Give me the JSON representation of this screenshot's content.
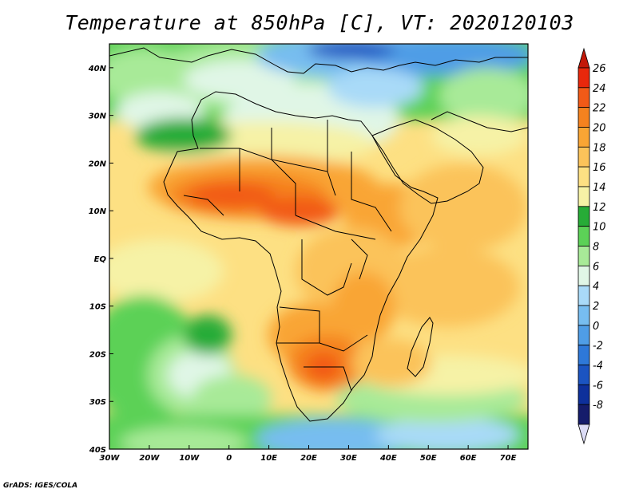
{
  "title": "Temperature at 850hPa [C], VT: 2020120103",
  "credit": "GrADS: IGES/COLA",
  "map": {
    "lon_range": [
      -30,
      75
    ],
    "lat_range": [
      -40,
      45
    ],
    "lon_ticks": [
      {
        "value": -30,
        "label": "30W"
      },
      {
        "value": -20,
        "label": "20W"
      },
      {
        "value": -10,
        "label": "10W"
      },
      {
        "value": 0,
        "label": "0"
      },
      {
        "value": 10,
        "label": "10E"
      },
      {
        "value": 20,
        "label": "20E"
      },
      {
        "value": 30,
        "label": "30E"
      },
      {
        "value": 40,
        "label": "40E"
      },
      {
        "value": 50,
        "label": "50E"
      },
      {
        "value": 60,
        "label": "60E"
      },
      {
        "value": 70,
        "label": "70E"
      }
    ],
    "lat_ticks": [
      {
        "value": 40,
        "label": "40N"
      },
      {
        "value": 30,
        "label": "30N"
      },
      {
        "value": 20,
        "label": "20N"
      },
      {
        "value": 10,
        "label": "10N"
      },
      {
        "value": 0,
        "label": "EQ"
      },
      {
        "value": -10,
        "label": "10S"
      },
      {
        "value": -20,
        "label": "20S"
      },
      {
        "value": -30,
        "label": "30S"
      },
      {
        "value": -40,
        "label": "40S"
      }
    ]
  },
  "colorbar": {
    "labels": [
      "26",
      "24",
      "22",
      "20",
      "18",
      "16",
      "14",
      "12",
      "10",
      "8",
      "6",
      "4",
      "2",
      "0",
      "-2",
      "-4",
      "-6",
      "-8"
    ],
    "colors": [
      "#e8280c",
      "#f25a17",
      "#f5821f",
      "#f9a534",
      "#fbc35a",
      "#fde083",
      "#f6f2a6",
      "#27ac37",
      "#5cd157",
      "#a8ea98",
      "#e0f6e6",
      "#a9daf8",
      "#77bdf0",
      "#4f9de6",
      "#2e78d8",
      "#1b54c1",
      "#0e309b",
      "#151c6b"
    ],
    "top_color": "#c21809",
    "bottom_color": "#dcdcf6"
  }
}
